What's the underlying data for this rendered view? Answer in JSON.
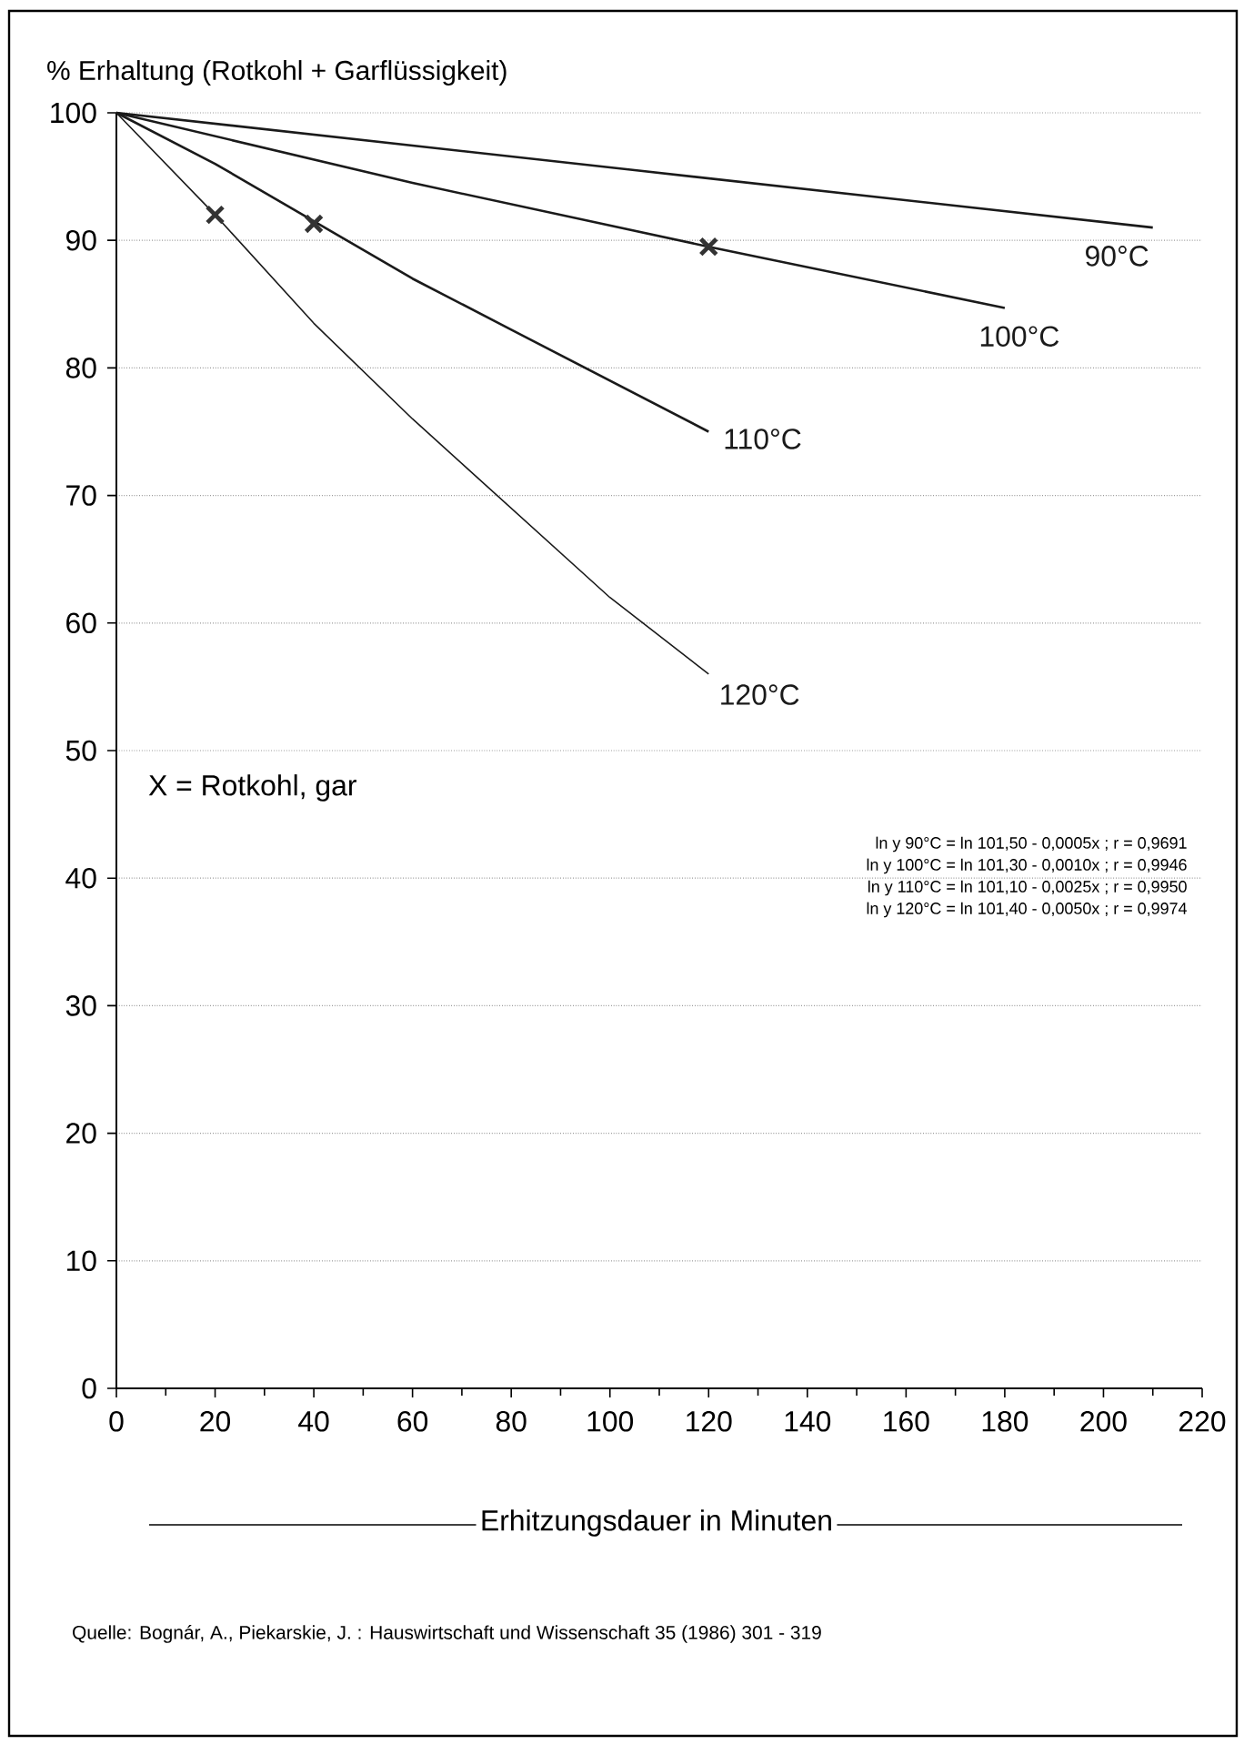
{
  "chart_data": {
    "type": "line",
    "title": "% Erhaltung (Rotkohl + Garflüssigkeit)",
    "xlabel": "Erhitzungsdauer in Minuten",
    "xlim": [
      0,
      220
    ],
    "xticks": [
      0,
      20,
      40,
      60,
      80,
      100,
      120,
      140,
      160,
      180,
      200,
      220
    ],
    "ylim": [
      0,
      100
    ],
    "yticks": [
      0,
      10,
      20,
      30,
      40,
      50,
      60,
      70,
      80,
      90,
      100
    ],
    "grid": "y",
    "line_style": "solid",
    "series": [
      {
        "name": "90°C",
        "color": "#1a1a1a",
        "x": [
          0,
          105,
          210
        ],
        "values": [
          100,
          95.5,
          91
        ]
      },
      {
        "name": "100°C",
        "color": "#1a1a1a",
        "x": [
          0,
          60,
          120,
          180
        ],
        "values": [
          100,
          94.5,
          89.5,
          84.7
        ]
      },
      {
        "name": "110°C",
        "color": "#1a1a1a",
        "x": [
          0,
          20,
          40,
          60,
          80,
          100,
          120
        ],
        "values": [
          100,
          96,
          91.5,
          87,
          83,
          79,
          75
        ]
      },
      {
        "name": "120°C",
        "color": "#1a1a1a",
        "x": [
          0,
          20,
          40,
          60,
          80,
          100,
          120
        ],
        "values": [
          100,
          92,
          83.5,
          76,
          69,
          62,
          56
        ]
      },
      {
        "type": "scatter",
        "marker": "cross",
        "color": "#333333",
        "x": [
          20,
          40,
          120
        ],
        "values": [
          92,
          91.3,
          89.5
        ]
      }
    ],
    "annotations": [
      "X = Rotkohl, gar",
      "ln y  90°C =  ln 101,50 - 0,0005x ;  r = 0,9691",
      "ln y 100°C =  ln 101,30 - 0,0010x ;  r = 0,9946",
      "ln y 110°C =  ln 101,10 - 0,0025x ;  r = 0,9950",
      "ln y 120°C =  ln 101,40 - 0,0050x ;  r = 0,9974",
      "Quelle: Bognár, A., Piekarskie, J. : Hauswirtschaft und Wissenschaft 35 (1986) 301 - 319"
    ]
  }
}
